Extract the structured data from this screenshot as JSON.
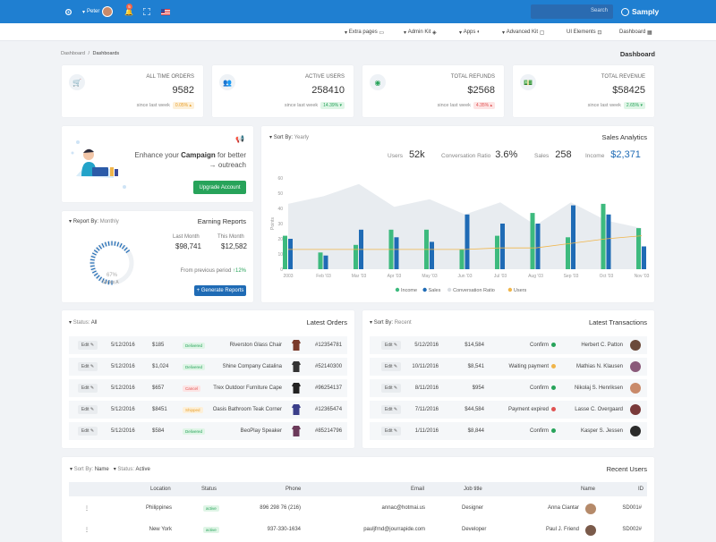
{
  "topbar": {
    "user": "Peter",
    "notif_count": "5",
    "search_placeholder": "Search",
    "brand": "Samply"
  },
  "nav": {
    "items": [
      "Extra pages",
      "Admin Kit",
      "Apps",
      "Advanced Kit",
      "UI Elements",
      "Dashboard"
    ]
  },
  "breadcrumb": {
    "root": "Dashboard",
    "sep": "/",
    "current": "Dashboards"
  },
  "page_title": "Dashboard",
  "stats": [
    {
      "label": "All time orders",
      "value": "9582",
      "foot": "since last week",
      "badge": "0.05%",
      "badge_type": "orange",
      "icon": "cart-icon",
      "color": "#27a35a"
    },
    {
      "label": "Active users",
      "value": "258410",
      "foot": "since last week",
      "badge": "14.39%",
      "badge_type": "green",
      "icon": "users-icon",
      "color": "#1f7fd1"
    },
    {
      "label": "Total refunds",
      "value": "$2568",
      "foot": "since last week",
      "badge": "4.35%",
      "badge_type": "red",
      "icon": "refund-icon",
      "color": "#27a35a"
    },
    {
      "label": "Total revenue",
      "value": "$58425",
      "foot": "since last week",
      "badge": "2.65%",
      "badge_type": "green",
      "icon": "money-icon",
      "color": "#1f7fd1"
    }
  ],
  "campaign": {
    "line1a": "Enhance your ",
    "line1b": "Campaign",
    "line1c": " for better",
    "line2": "→ outreach",
    "button": "Upgrade Account"
  },
  "earning": {
    "filter_label": "Report By:",
    "filter_value": "Monthly",
    "title": "Earning Reports",
    "last_month_label": "Last Month",
    "last_month": "$98,741",
    "this_month_label": "This Month",
    "this_month": "$12,582",
    "gauge_value": "67%",
    "gauge_label": "Series A",
    "gauge_fraction": 0.67,
    "prev_label": "From previous period",
    "prev_change": "12%",
    "button": "Generate Reports"
  },
  "analytics": {
    "sort_label": "Sort By:",
    "sort_value": "Yearly",
    "title": "Sales Analytics",
    "kpis": [
      {
        "label": "Users",
        "value": "52k"
      },
      {
        "label": "Conversation Ratio",
        "value": "3.6%"
      },
      {
        "label": "Sales",
        "value": "258"
      },
      {
        "label": "Income",
        "value": "$2,371"
      }
    ]
  },
  "chart_data": {
    "type": "bar",
    "ylabel": "Points",
    "ylim": [
      0,
      60
    ],
    "yticks": [
      "0",
      "10",
      "20",
      "30",
      "40",
      "50",
      "60"
    ],
    "categories": [
      "2003",
      "Feb '03",
      "Mar '03",
      "Apr '03",
      "May '03",
      "Jun '03",
      "Jul '03",
      "Aug '03",
      "Sep '03",
      "Oct '03",
      "Nov '03"
    ],
    "xticks": [
      "2003",
      "Feb '03",
      "Mar '03",
      "Apr '03",
      "May '03",
      "Jun '03",
      "Jul '03",
      "Aug '03",
      "Sep '03",
      "Oct '03",
      "Nov '03"
    ],
    "series": [
      {
        "name": "Income",
        "type": "bar",
        "color": "#3dba7e",
        "values": [
          22,
          11,
          16,
          26,
          26,
          13,
          22,
          37,
          21,
          43,
          27
        ]
      },
      {
        "name": "Sales",
        "type": "bar",
        "color": "#1f6bb5",
        "values": [
          20,
          9,
          26,
          21,
          18,
          36,
          30,
          30,
          42,
          36,
          15
        ]
      },
      {
        "name": "Conversation Ratio",
        "type": "area",
        "color": "#e8ecf0",
        "values": [
          43,
          48,
          56,
          41,
          46,
          36,
          44,
          29,
          44,
          32,
          27
        ]
      },
      {
        "name": "Users",
        "type": "line",
        "color": "#f0b54a",
        "values": [
          13,
          13,
          13,
          13,
          13,
          13,
          14,
          14,
          17,
          20,
          22
        ]
      }
    ],
    "legend": "bottom"
  },
  "orders": {
    "filter_label": "Status:",
    "filter_value": "All",
    "title": "Latest Orders",
    "edit": "Edit",
    "rows": [
      {
        "date": "5/12/2016",
        "price": "$185",
        "status": "Delivered",
        "st": "green",
        "product": "Riverston Glass Chair",
        "id": "#12354781",
        "thumb": "#7a3a2a"
      },
      {
        "date": "5/12/2016",
        "price": "$1,024",
        "status": "Delivered",
        "st": "green",
        "product": "Shine Company Catalina",
        "id": "#52140300",
        "thumb": "#333"
      },
      {
        "date": "5/12/2016",
        "price": "$657",
        "status": "Cancel",
        "st": "red",
        "product": "Trex Outdoor Furniture Cape",
        "id": "#96254137",
        "thumb": "#222"
      },
      {
        "date": "5/12/2016",
        "price": "$8451",
        "status": "Shipped",
        "st": "orange",
        "product": "Oasis Bathroom Teak Corner",
        "id": "#12365474",
        "thumb": "#3b3f8a"
      },
      {
        "date": "5/12/2016",
        "price": "$584",
        "status": "Delivered",
        "st": "green",
        "product": "BeoPlay Speaker",
        "id": "#85214796",
        "thumb": "#6b3a5a"
      }
    ]
  },
  "transactions": {
    "filter_label": "Sort By:",
    "filter_value": "Recent",
    "title": "Latest Transactions",
    "edit": "Edit",
    "rows": [
      {
        "date": "5/12/2016",
        "amount": "$14,584",
        "status": "Confirm",
        "dot": "#27a35a",
        "name": "Herbert C. Patton",
        "av": "#6b4a3a"
      },
      {
        "date": "10/11/2016",
        "amount": "$8,541",
        "status": "Waiting payment",
        "dot": "#f0b54a",
        "name": "Mathias N. Klausen",
        "av": "#8a5a7a"
      },
      {
        "date": "8/11/2016",
        "amount": "$954",
        "status": "Confirm",
        "dot": "#27a35a",
        "name": "Nikolaj S. Henriksen",
        "av": "#c98a6a"
      },
      {
        "date": "7/11/2016",
        "amount": "$44,584",
        "status": "Payment expired",
        "dot": "#e05252",
        "name": "Lasse C. Overgaard",
        "av": "#7a3a3a"
      },
      {
        "date": "1/11/2016",
        "amount": "$8,844",
        "status": "Confirm",
        "dot": "#27a35a",
        "name": "Kasper S. Jessen",
        "av": "#2a2a2a"
      }
    ]
  },
  "recent_users": {
    "sort_label": "Sort By:",
    "sort_value": "Name",
    "status_label": "Status:",
    "status_value": "Active",
    "title": "Recent Users",
    "headers": [
      "Location",
      "Status",
      "Phone",
      "Email",
      "Job title",
      "Name",
      "ID"
    ],
    "rows": [
      {
        "location": "Philippines",
        "status": "active",
        "phone": "896 298 76 (216)",
        "email": "annac@hotmai.us",
        "job": "Designer",
        "name": "Anna Ciantar",
        "id": "SD001#"
      },
      {
        "location": "New York",
        "status": "active",
        "phone": "937-330-1634",
        "email": "pauljfrnd@jourrapide.com",
        "job": "Developer",
        "name": "Paul J. Friend",
        "id": "SD002#"
      }
    ]
  }
}
